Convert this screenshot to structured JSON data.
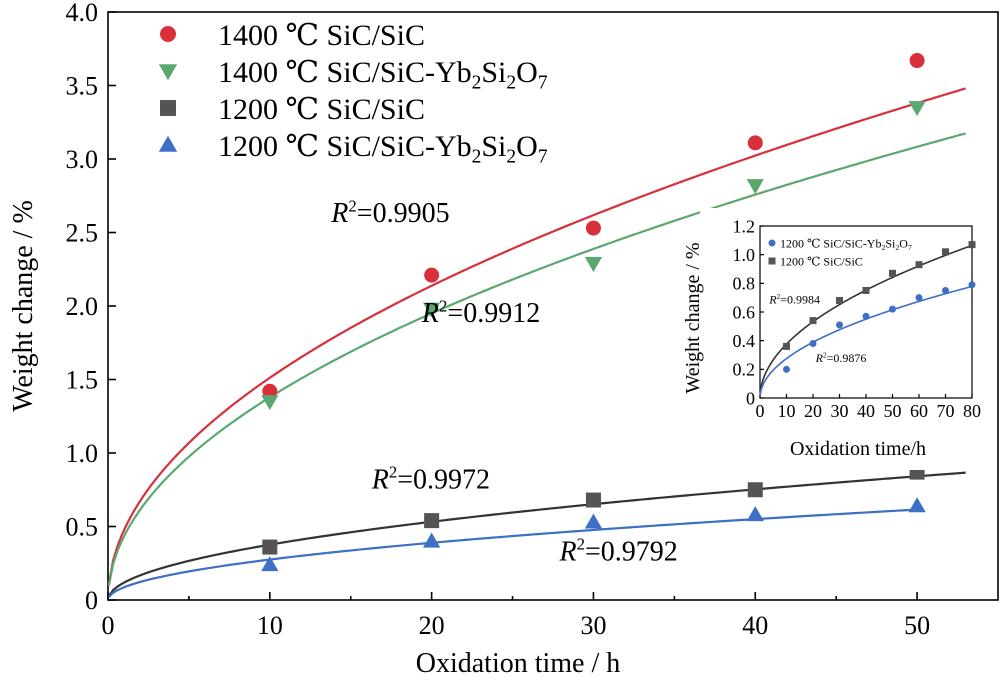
{
  "chart_data": [
    {
      "type": "scatter",
      "xlabel": "Oxidation time / h",
      "ylabel": "Weight change / %",
      "xlim": [
        0,
        55
      ],
      "ylim": [
        0,
        4.0
      ],
      "xticks": [
        "0",
        "10",
        "20",
        "30",
        "40",
        "50"
      ],
      "yticks": [
        "0",
        "0.5",
        "1.0",
        "1.5",
        "2.0",
        "2.5",
        "3.0",
        "3.5",
        "4.0"
      ],
      "legend_position": "top-left",
      "series": [
        {
          "name": "1400 ℃ SiC/SiC",
          "color": "#d7303b",
          "marker": "circle",
          "points": [
            [
              10,
              1.42
            ],
            [
              20,
              2.21
            ],
            [
              30,
              2.53
            ],
            [
              40,
              3.11
            ],
            [
              50,
              3.67
            ]
          ]
        },
        {
          "name": "1400 ℃ SiC/SiC-Yb₂Si₂O₇",
          "color": "#5aa870",
          "marker": "triangle-down",
          "points": [
            [
              10,
              1.35
            ],
            [
              20,
              1.98
            ],
            [
              30,
              2.29
            ],
            [
              40,
              2.82
            ],
            [
              50,
              3.35
            ]
          ]
        },
        {
          "name": "1200 ℃ SiC/SiC",
          "color": "#545454",
          "marker": "square",
          "points": [
            [
              10,
              0.36
            ],
            [
              20,
              0.54
            ],
            [
              30,
              0.68
            ],
            [
              40,
              0.75
            ],
            [
              50,
              0.87
            ]
          ]
        },
        {
          "name": "1200 ℃ SiC/SiC-Yb₂Si₂O₇",
          "color": "#3d6fc4",
          "marker": "triangle-up",
          "points": [
            [
              10,
              0.24
            ],
            [
              20,
              0.4
            ],
            [
              30,
              0.53
            ],
            [
              40,
              0.58
            ],
            [
              50,
              0.64
            ]
          ]
        }
      ],
      "fits": [
        {
          "color": "#d7303b",
          "k": 0.478,
          "n": 0.5,
          "x_end": 53
        },
        {
          "color": "#5aa870",
          "k": 0.436,
          "n": 0.5,
          "x_end": 53
        },
        {
          "color": "#333333",
          "k": 0.119,
          "n": 0.5,
          "x_end": 53
        },
        {
          "color": "#3d6fc4",
          "k": 0.087,
          "n": 0.5,
          "x_end": 50
        }
      ],
      "annotations": [
        {
          "r2": "0.9905",
          "x": 13.8,
          "y": 2.57
        },
        {
          "r2": "0.9912",
          "x": 19.4,
          "y": 1.89
        },
        {
          "r2": "0.9972",
          "x": 16.3,
          "y": 0.76
        },
        {
          "r2": "0.9792",
          "x": 27.9,
          "y": 0.27
        }
      ]
    },
    {
      "type": "scatter",
      "xlabel": "Oxidation time/h",
      "ylabel": "Weight change / %",
      "xlim": [
        0,
        80
      ],
      "ylim": [
        0,
        1.2
      ],
      "xticks": [
        "0",
        "10",
        "20",
        "30",
        "40",
        "50",
        "60",
        "70",
        "80"
      ],
      "yticks": [
        "0",
        "0.2",
        "0.4",
        "0.6",
        "0.8",
        "1.0",
        "1.2"
      ],
      "legend_position": "top-left",
      "series": [
        {
          "name": "1200 ℃ SiC/SiC-Yb₂Si₂O₇",
          "color": "#3d6fc4",
          "marker": "circle",
          "points": [
            [
              10,
              0.2
            ],
            [
              20,
              0.38
            ],
            [
              30,
              0.51
            ],
            [
              40,
              0.57
            ],
            [
              50,
              0.62
            ],
            [
              60,
              0.7
            ],
            [
              70,
              0.75
            ],
            [
              80,
              0.79
            ]
          ]
        },
        {
          "name": "1200 ℃ SiC/SiC",
          "color": "#545454",
          "marker": "square",
          "points": [
            [
              10,
              0.36
            ],
            [
              20,
              0.54
            ],
            [
              30,
              0.68
            ],
            [
              40,
              0.75
            ],
            [
              50,
              0.87
            ],
            [
              60,
              0.93
            ],
            [
              70,
              1.02
            ],
            [
              80,
              1.07
            ]
          ]
        }
      ],
      "fits": [
        {
          "color": "#333333",
          "k": 0.119,
          "n": 0.5,
          "x_end": 80
        },
        {
          "color": "#3d6fc4",
          "k": 0.087,
          "n": 0.5,
          "x_end": 80
        }
      ],
      "annotations": [
        {
          "r2": "0.9984",
          "x": 3.5,
          "y": 0.66
        },
        {
          "r2": "0.9876",
          "x": 21,
          "y": 0.25
        }
      ]
    }
  ]
}
